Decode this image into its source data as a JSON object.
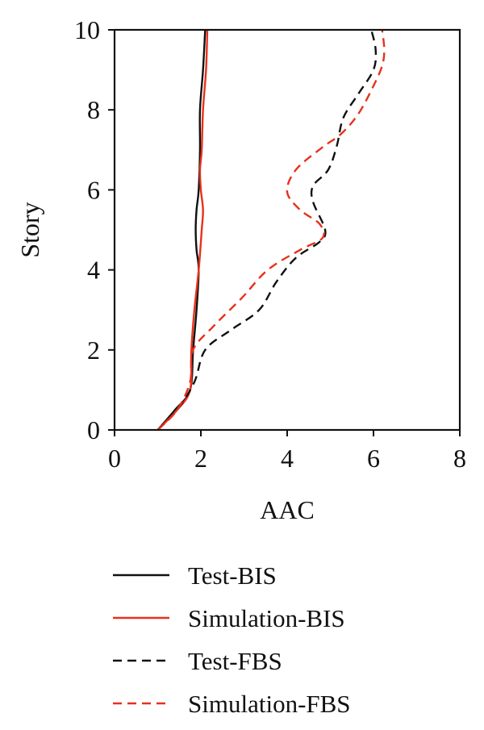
{
  "chart_data": {
    "type": "line",
    "xlabel": "AAC",
    "ylabel": "Story",
    "xlim": [
      0,
      8
    ],
    "ylim": [
      0,
      10
    ],
    "xticks": [
      "0",
      "2",
      "4",
      "6",
      "8"
    ],
    "yticks": [
      "0",
      "2",
      "4",
      "6",
      "8",
      "10"
    ],
    "grid": false,
    "legend_position": "bottom",
    "series": [
      {
        "name": "Test-BIS",
        "color": "#111111",
        "dash": "solid",
        "points": [
          [
            1.0,
            0.0
          ],
          [
            1.4,
            0.5
          ],
          [
            1.75,
            1.0
          ],
          [
            1.82,
            2.0
          ],
          [
            1.9,
            3.0
          ],
          [
            1.95,
            4.0
          ],
          [
            1.9,
            4.5
          ],
          [
            1.88,
            5.0
          ],
          [
            1.9,
            5.5
          ],
          [
            1.95,
            6.0
          ],
          [
            1.98,
            7.0
          ],
          [
            1.98,
            8.0
          ],
          [
            2.05,
            9.0
          ],
          [
            2.1,
            10.0
          ]
        ]
      },
      {
        "name": "Simulation-BIS",
        "color": "#e8311c",
        "dash": "solid",
        "points": [
          [
            1.0,
            0.0
          ],
          [
            1.45,
            0.5
          ],
          [
            1.75,
            1.0
          ],
          [
            1.78,
            2.0
          ],
          [
            1.85,
            3.0
          ],
          [
            1.95,
            4.0
          ],
          [
            2.02,
            5.0
          ],
          [
            2.05,
            5.5
          ],
          [
            2.0,
            6.0
          ],
          [
            1.98,
            6.5
          ],
          [
            2.02,
            7.0
          ],
          [
            2.05,
            8.0
          ],
          [
            2.12,
            9.0
          ],
          [
            2.15,
            10.0
          ]
        ]
      },
      {
        "name": "Test-FBS",
        "color": "#111111",
        "dash": "dashed",
        "points": [
          [
            1.0,
            0.0
          ],
          [
            1.45,
            0.5
          ],
          [
            1.85,
            1.2
          ],
          [
            2.1,
            2.0
          ],
          [
            2.7,
            2.5
          ],
          [
            3.35,
            3.0
          ],
          [
            3.75,
            3.7
          ],
          [
            4.2,
            4.3
          ],
          [
            4.75,
            4.7
          ],
          [
            4.88,
            5.0
          ],
          [
            4.6,
            5.7
          ],
          [
            4.6,
            6.1
          ],
          [
            4.95,
            6.5
          ],
          [
            5.15,
            7.1
          ],
          [
            5.3,
            7.8
          ],
          [
            5.65,
            8.4
          ],
          [
            6.0,
            9.0
          ],
          [
            6.05,
            9.5
          ],
          [
            5.95,
            10.0
          ]
        ]
      },
      {
        "name": "Simulation-FBS",
        "color": "#e8311c",
        "dash": "dashed",
        "points": [
          [
            1.0,
            0.0
          ],
          [
            1.45,
            0.5
          ],
          [
            1.75,
            1.2
          ],
          [
            1.82,
            2.0
          ],
          [
            2.3,
            2.6
          ],
          [
            2.95,
            3.3
          ],
          [
            3.55,
            4.0
          ],
          [
            4.3,
            4.5
          ],
          [
            4.82,
            4.8
          ],
          [
            4.75,
            5.15
          ],
          [
            4.3,
            5.5
          ],
          [
            4.0,
            5.95
          ],
          [
            4.2,
            6.5
          ],
          [
            4.8,
            7.05
          ],
          [
            5.25,
            7.4
          ],
          [
            5.65,
            7.9
          ],
          [
            6.0,
            8.6
          ],
          [
            6.2,
            9.1
          ],
          [
            6.25,
            9.5
          ],
          [
            6.2,
            10.0
          ]
        ]
      }
    ]
  }
}
